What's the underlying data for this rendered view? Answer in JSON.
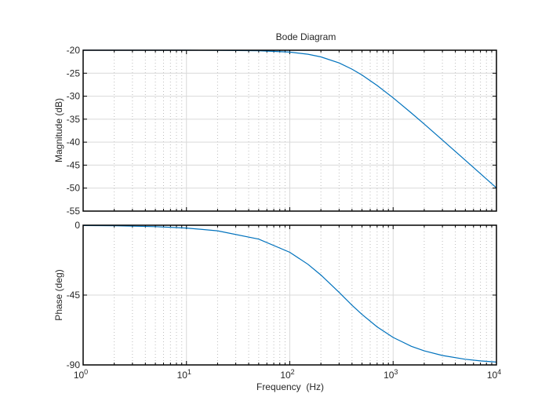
{
  "chart_data": [
    {
      "type": "line",
      "title": "Bode Diagram",
      "ylabel": "Magnitude (dB)",
      "xlabel": "",
      "xscale": "log",
      "xlim": [
        1,
        10000
      ],
      "ylim": [
        -55,
        -20
      ],
      "yticks": [
        -20,
        -25,
        -30,
        -35,
        -40,
        -45,
        -50,
        -55
      ],
      "grid": true,
      "line_color": "#0072BD",
      "series": [
        {
          "x": [
            1,
            2,
            5,
            10,
            20,
            50,
            100,
            150,
            200,
            300,
            400,
            500,
            700,
            1000,
            1500,
            2000,
            3000,
            5000,
            7000,
            10000
          ],
          "y": [
            -20.0,
            -20.0,
            -20.0,
            -20.0,
            -20.02,
            -20.11,
            -20.41,
            -20.87,
            -21.45,
            -22.76,
            -24.12,
            -25.4,
            -27.66,
            -30.36,
            -33.66,
            -36.07,
            -39.53,
            -43.94,
            -46.85,
            -49.95
          ]
        }
      ]
    },
    {
      "type": "line",
      "ylabel": "Phase (deg)",
      "xlabel": "Frequency  (Hz)",
      "xscale": "log",
      "xlim": [
        1,
        10000
      ],
      "ylim": [
        -90,
        0
      ],
      "yticks": [
        0,
        -45,
        -90
      ],
      "xticks": [
        {
          "base": "10",
          "exp": "0"
        },
        {
          "base": "10",
          "exp": "1"
        },
        {
          "base": "10",
          "exp": "2"
        },
        {
          "base": "10",
          "exp": "3"
        },
        {
          "base": "10",
          "exp": "4"
        }
      ],
      "grid": true,
      "line_color": "#0072BD",
      "series": [
        {
          "x": [
            1,
            2,
            5,
            10,
            20,
            50,
            100,
            150,
            200,
            300,
            400,
            500,
            700,
            1000,
            1500,
            2000,
            3000,
            5000,
            7000,
            10000
          ],
          "y": [
            -0.18,
            -0.36,
            -0.9,
            -1.8,
            -3.6,
            -8.93,
            -17.44,
            -25.2,
            -32.1,
            -43.3,
            -51.5,
            -57.5,
            -65.5,
            -72.3,
            -78.0,
            -80.96,
            -83.94,
            -86.36,
            -87.4,
            -88.18
          ]
        }
      ]
    }
  ]
}
